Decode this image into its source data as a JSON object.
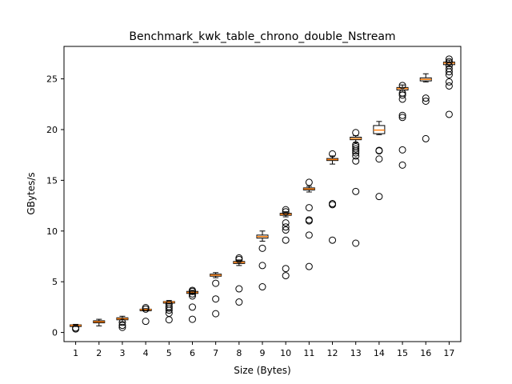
{
  "chart_data": {
    "type": "boxplot",
    "title": "Benchmark_kwk_table_chrono_double_Nstream",
    "xlabel": "Size (Bytes)",
    "ylabel": "GBytes/s",
    "categories": [
      "1",
      "2",
      "3",
      "4",
      "5",
      "6",
      "7",
      "8",
      "9",
      "10",
      "11",
      "12",
      "13",
      "14",
      "15",
      "16",
      "17"
    ],
    "ylim": [
      -0.9,
      28.2
    ],
    "yticks": [
      0,
      5,
      10,
      15,
      20,
      25
    ],
    "grid": false,
    "colors": {
      "box": "#000000",
      "median": "#ff7f0e",
      "flier": "#000000"
    },
    "boxes": [
      {
        "x": "1",
        "q1": 0.65,
        "median": 0.7,
        "q3": 0.75,
        "wlo": 0.6,
        "whi": 0.8,
        "fliers": [
          0.35,
          0.45
        ]
      },
      {
        "x": "2",
        "q1": 0.95,
        "median": 1.05,
        "q3": 1.15,
        "wlo": 0.65,
        "whi": 1.3,
        "fliers": []
      },
      {
        "x": "3",
        "q1": 1.25,
        "median": 1.35,
        "q3": 1.45,
        "wlo": 1.05,
        "whi": 1.6,
        "fliers": [
          0.5,
          0.7,
          1.0
        ]
      },
      {
        "x": "4",
        "q1": 2.2,
        "median": 2.25,
        "q3": 2.3,
        "wlo": 2.15,
        "whi": 2.35,
        "fliers": [
          1.1,
          2.3,
          2.45
        ]
      },
      {
        "x": "5",
        "q1": 2.95,
        "median": 3.0,
        "q3": 3.05,
        "wlo": 2.85,
        "whi": 3.15,
        "fliers": [
          1.25,
          1.9,
          2.2,
          2.4,
          2.55,
          2.8
        ]
      },
      {
        "x": "6",
        "q1": 3.85,
        "median": 3.95,
        "q3": 4.05,
        "wlo": 3.75,
        "whi": 4.15,
        "fliers": [
          1.3,
          2.5,
          3.6,
          3.8,
          4.05,
          4.15
        ]
      },
      {
        "x": "7",
        "q1": 5.55,
        "median": 5.65,
        "q3": 5.75,
        "wlo": 5.4,
        "whi": 5.9,
        "fliers": [
          1.85,
          3.3,
          4.85
        ]
      },
      {
        "x": "8",
        "q1": 6.8,
        "median": 6.9,
        "q3": 7.0,
        "wlo": 6.6,
        "whi": 7.15,
        "fliers": [
          3.0,
          4.3,
          7.2,
          7.35
        ]
      },
      {
        "x": "9",
        "q1": 9.3,
        "median": 9.45,
        "q3": 9.6,
        "wlo": 9.0,
        "whi": 10.0,
        "fliers": [
          4.5,
          6.6,
          8.3
        ]
      },
      {
        "x": "10",
        "q1": 11.55,
        "median": 11.65,
        "q3": 11.75,
        "wlo": 11.4,
        "whi": 11.9,
        "fliers": [
          5.6,
          6.3,
          9.1,
          10.1,
          10.4,
          10.8,
          11.9,
          12.1
        ]
      },
      {
        "x": "11",
        "q1": 14.05,
        "median": 14.15,
        "q3": 14.25,
        "wlo": 13.85,
        "whi": 14.4,
        "fliers": [
          6.5,
          9.6,
          11.0,
          11.1,
          12.3,
          14.8
        ]
      },
      {
        "x": "12",
        "q1": 16.95,
        "median": 17.05,
        "q3": 17.15,
        "wlo": 16.6,
        "whi": 17.4,
        "fliers": [
          9.1,
          12.6,
          12.7,
          17.6
        ]
      },
      {
        "x": "13",
        "q1": 19.0,
        "median": 19.1,
        "q3": 19.25,
        "wlo": 18.7,
        "whi": 19.4,
        "fliers": [
          8.8,
          13.9,
          16.9,
          17.4,
          17.7,
          17.9,
          18.1,
          18.3,
          18.5,
          19.7
        ]
      },
      {
        "x": "14",
        "q1": 19.6,
        "median": 19.95,
        "q3": 20.4,
        "wlo": 19.5,
        "whi": 20.8,
        "fliers": [
          13.4,
          17.1,
          17.9,
          17.95
        ]
      },
      {
        "x": "15",
        "q1": 23.9,
        "median": 24.05,
        "q3": 24.15,
        "wlo": 23.7,
        "whi": 24.4,
        "fliers": [
          16.5,
          18.0,
          21.2,
          21.4,
          23.0,
          23.4,
          23.6,
          24.35
        ]
      },
      {
        "x": "16",
        "q1": 24.8,
        "median": 24.95,
        "q3": 25.1,
        "wlo": 24.7,
        "whi": 25.5,
        "fliers": [
          19.1,
          22.8,
          23.1
        ]
      },
      {
        "x": "17",
        "q1": 26.4,
        "median": 26.55,
        "q3": 26.65,
        "wlo": 26.2,
        "whi": 26.85,
        "fliers": [
          21.5,
          24.3,
          24.7,
          25.4,
          25.7,
          26.0,
          26.3,
          26.7,
          26.95
        ]
      }
    ]
  }
}
